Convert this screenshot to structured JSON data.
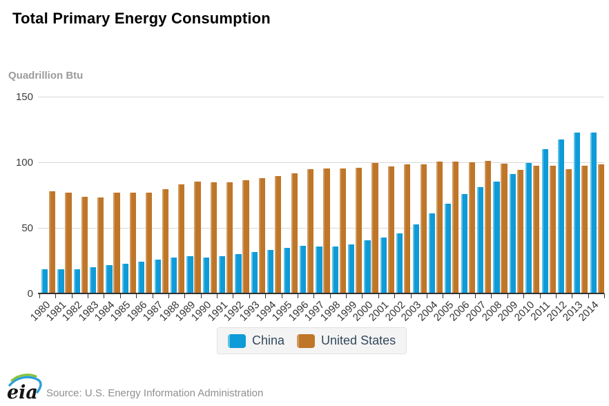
{
  "title": "Total Primary Energy Consumption",
  "y_axis_title": "Quadrillion Btu",
  "footer": {
    "source": "Source: U.S. Energy Information Administration",
    "logo_text": "eia"
  },
  "colors": {
    "china": "#0f9bd7",
    "china_light": "#5fc1e7",
    "us": "#bf7628",
    "us_light": "#d09a62",
    "gridline": "#d8d8d8",
    "axis": "#2f2f2f",
    "legend_bg": "#f4f4f4",
    "legend_text": "#33495d",
    "title_text": "#000000",
    "muted_text": "#9b9b9b",
    "logo_green": "#86c440",
    "logo_blue": "#2a9fd8"
  },
  "chart_data": {
    "type": "bar",
    "title": "Total Primary Energy Consumption",
    "xlabel": "",
    "ylabel": "Quadrillion Btu",
    "ylim": [
      0,
      150
    ],
    "yticks": [
      0,
      50,
      100,
      150
    ],
    "grid": true,
    "legend_position": "bottom",
    "categories": [
      1980,
      1981,
      1982,
      1983,
      1984,
      1985,
      1986,
      1987,
      1988,
      1989,
      1990,
      1991,
      1992,
      1993,
      1994,
      1995,
      1996,
      1997,
      1998,
      1999,
      2000,
      2001,
      2002,
      2003,
      2004,
      2005,
      2006,
      2007,
      2008,
      2009,
      2010,
      2011,
      2012,
      2013,
      2014
    ],
    "series": [
      {
        "name": "China",
        "color": "#0f9bd7",
        "values": [
          17.9,
          17.8,
          18.0,
          19.6,
          21.3,
          22.4,
          23.8,
          25.4,
          27.1,
          27.9,
          27.1,
          28.2,
          29.4,
          30.9,
          32.6,
          34.3,
          35.8,
          35.5,
          35.3,
          37.1,
          40.2,
          42.1,
          45.2,
          52.3,
          60.6,
          67.8,
          75.4,
          80.8,
          84.8,
          90.5,
          99.0,
          109.6,
          117.1,
          122.4,
          122.5
        ]
      },
      {
        "name": "United States",
        "color": "#bf7628",
        "values": [
          77.7,
          76.2,
          73.1,
          73.0,
          76.7,
          76.4,
          76.7,
          79.2,
          82.9,
          84.9,
          84.6,
          84.5,
          85.9,
          87.6,
          89.2,
          91.2,
          94.2,
          94.7,
          94.8,
          95.6,
          99.0,
          96.5,
          97.9,
          98.1,
          100.2,
          100.4,
          99.4,
          100.9,
          98.5,
          94.0,
          97.0,
          96.9,
          94.4,
          97.1,
          98.3
        ]
      }
    ]
  }
}
